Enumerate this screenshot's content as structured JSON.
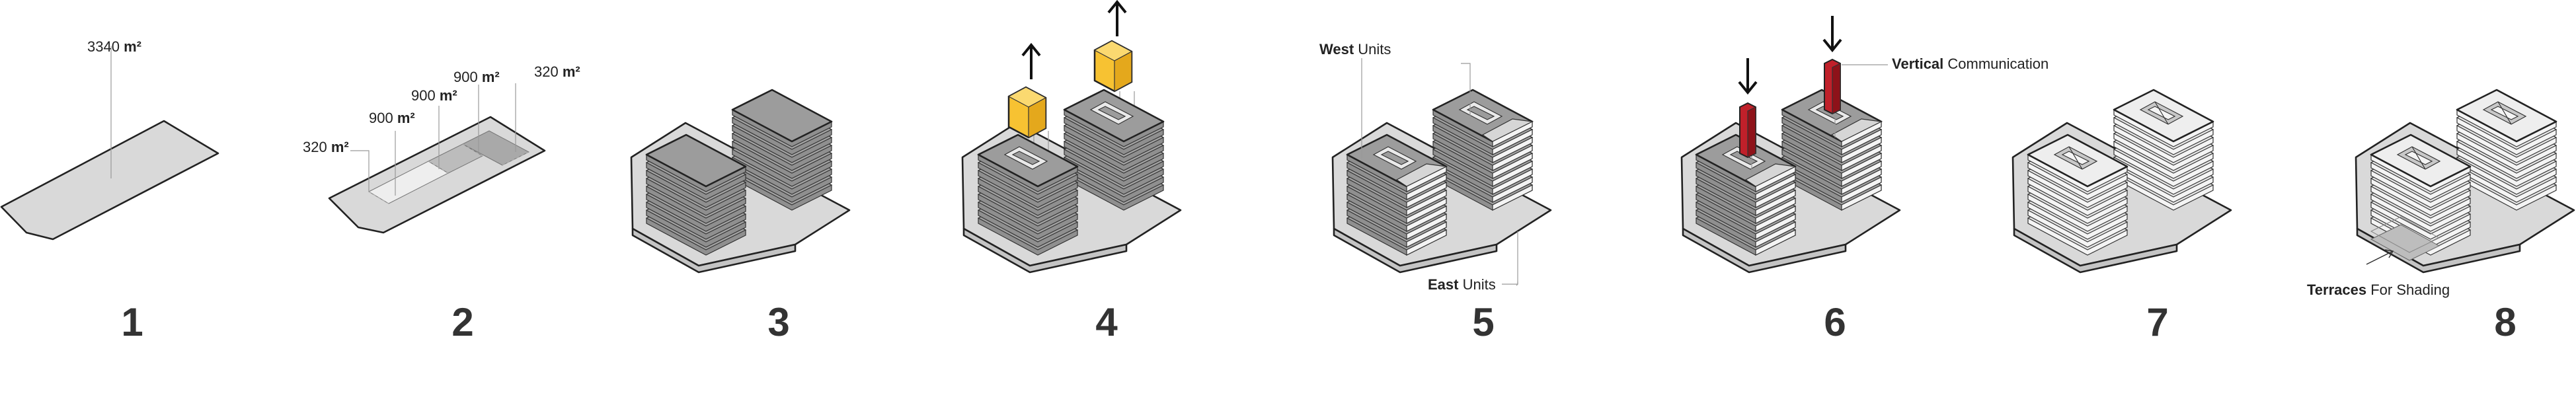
{
  "steps": [
    {
      "number": "1"
    },
    {
      "number": "2"
    },
    {
      "number": "3"
    },
    {
      "number": "4"
    },
    {
      "number": "5"
    },
    {
      "number": "6"
    },
    {
      "number": "7"
    },
    {
      "number": "8"
    }
  ],
  "labels": {
    "site_area": {
      "value": "3340",
      "unit": "m²"
    },
    "plot_a": {
      "value": "320",
      "unit": "m²"
    },
    "plot_b": {
      "value": "900",
      "unit": "m²"
    },
    "plot_c": {
      "value": "900",
      "unit": "m²"
    },
    "plot_d": {
      "value": "900",
      "unit": "m²"
    },
    "plot_e": {
      "value": "320",
      "unit": "m²"
    },
    "west_units": {
      "bold": "West",
      "rest": " Units"
    },
    "east_units": {
      "bold": "East",
      "rest": " Units"
    },
    "vertical_comm": {
      "bold": "Vertical",
      "rest": " Communication"
    },
    "terraces": {
      "bold": "Terraces",
      "rest": " For Shading"
    }
  },
  "colors": {
    "lift_yellow": "#f7c232",
    "core_red": "#c0202a",
    "plate_grey": "#d9d9d9",
    "floor_dark": "#8f8f8f",
    "floor_light": "#f2f2f2"
  }
}
